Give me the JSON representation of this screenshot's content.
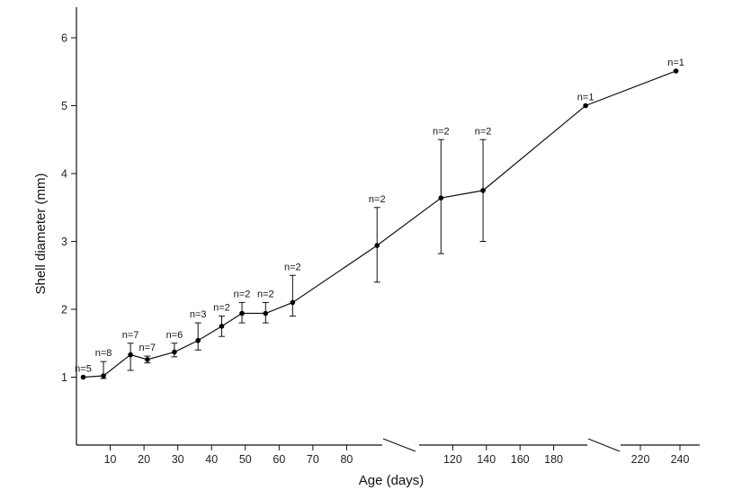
{
  "chart_data": {
    "type": "line",
    "xlabel": "Age (days)",
    "ylabel": "Shell diameter (mm)",
    "ylim": [
      0,
      6.4
    ],
    "yticks": [
      1,
      2,
      3,
      4,
      5,
      6
    ],
    "x_axis_breaks": [
      "after 90",
      "after 200"
    ],
    "xtick_labels": [
      "10",
      "20",
      "30",
      "40",
      "50",
      "60",
      "70",
      "80",
      "120",
      "140",
      "160",
      "180",
      "220",
      "240"
    ],
    "points": [
      {
        "x": 2,
        "y": 1.0,
        "err_low": 1.0,
        "err_high": 1.0,
        "n": "n=5"
      },
      {
        "x": 8,
        "y": 1.02,
        "err_low": 0.98,
        "err_high": 1.23,
        "n": "n=8"
      },
      {
        "x": 16,
        "y": 1.33,
        "err_low": 1.1,
        "err_high": 1.5,
        "n": "n=7"
      },
      {
        "x": 21,
        "y": 1.26,
        "err_low": 1.21,
        "err_high": 1.31,
        "n": "n=7"
      },
      {
        "x": 29,
        "y": 1.37,
        "err_low": 1.3,
        "err_high": 1.5,
        "n": "n=6"
      },
      {
        "x": 36,
        "y": 1.54,
        "err_low": 1.4,
        "err_high": 1.8,
        "n": "n=3"
      },
      {
        "x": 43,
        "y": 1.75,
        "err_low": 1.6,
        "err_high": 1.9,
        "n": "n=2"
      },
      {
        "x": 49,
        "y": 1.94,
        "err_low": 1.8,
        "err_high": 2.1,
        "n": "n=2"
      },
      {
        "x": 56,
        "y": 1.94,
        "err_low": 1.8,
        "err_high": 2.1,
        "n": "n=2"
      },
      {
        "x": 64,
        "y": 2.1,
        "err_low": 1.9,
        "err_high": 2.5,
        "n": "n=2"
      },
      {
        "x": 89,
        "y": 2.94,
        "err_low": 2.4,
        "err_high": 3.5,
        "n": "n=2"
      },
      {
        "x": 113,
        "y": 3.64,
        "err_low": 2.82,
        "err_high": 4.5,
        "n": "n=2"
      },
      {
        "x": 138,
        "y": 3.75,
        "err_low": 3.0,
        "err_high": 4.5,
        "n": "n=2"
      },
      {
        "x": 199,
        "y": 5.0,
        "err_low": 5.0,
        "err_high": 5.0,
        "n": "n=1"
      },
      {
        "x": 238,
        "y": 5.51,
        "err_low": 5.51,
        "err_high": 5.51,
        "n": "n=1"
      }
    ]
  }
}
